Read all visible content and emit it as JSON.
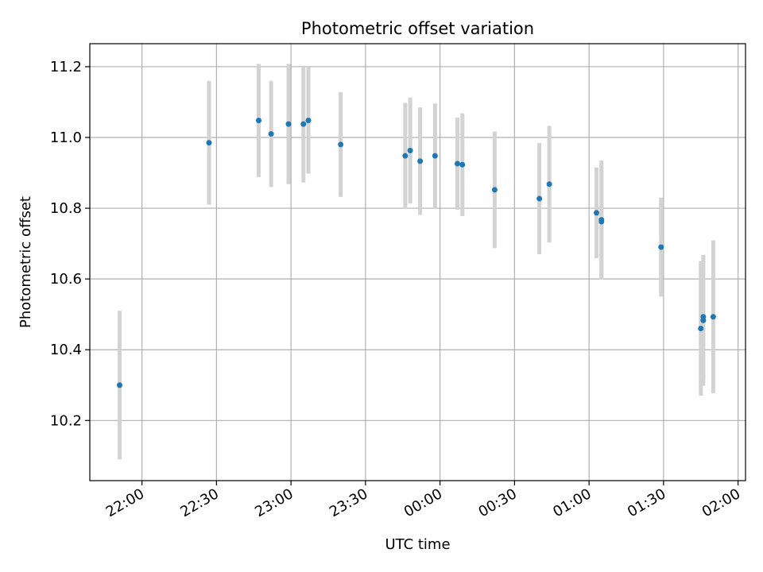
{
  "chart_data": {
    "type": "scatter",
    "title": "Photometric offset variation",
    "xlabel": "UTC time",
    "ylabel": "Photometric offset",
    "grid": true,
    "colors": {
      "point": "#1f77b4",
      "errorbar": "#d3d3d3",
      "grid": "#b0b0b0"
    },
    "xlim": [
      "21:39",
      "02:03"
    ],
    "ylim": [
      10.03,
      11.265
    ],
    "xticks": [
      "22:00",
      "22:30",
      "23:00",
      "23:30",
      "00:00",
      "00:30",
      "01:00",
      "01:30",
      "02:00"
    ],
    "yticks": [
      10.2,
      10.4,
      10.6,
      10.8,
      11.0,
      11.2
    ],
    "points": [
      {
        "t": "21:51",
        "y": 10.3,
        "err": 0.21
      },
      {
        "t": "22:27",
        "y": 10.985,
        "err": 0.175
      },
      {
        "t": "22:47",
        "y": 11.048,
        "err": 0.16
      },
      {
        "t": "22:52",
        "y": 11.01,
        "err": 0.15
      },
      {
        "t": "22:59",
        "y": 11.038,
        "err": 0.17
      },
      {
        "t": "23:05",
        "y": 11.038,
        "err": 0.165
      },
      {
        "t": "23:07",
        "y": 11.048,
        "err": 0.15
      },
      {
        "t": "23:20",
        "y": 10.98,
        "err": 0.148
      },
      {
        "t": "23:46",
        "y": 10.948,
        "err": 0.15
      },
      {
        "t": "23:48",
        "y": 10.963,
        "err": 0.15
      },
      {
        "t": "23:52",
        "y": 10.933,
        "err": 0.152
      },
      {
        "t": "23:58",
        "y": 10.948,
        "err": 0.148
      },
      {
        "t": "00:07",
        "y": 10.926,
        "err": 0.13
      },
      {
        "t": "00:09",
        "y": 10.923,
        "err": 0.145
      },
      {
        "t": "00:22",
        "y": 10.852,
        "err": 0.165
      },
      {
        "t": "00:40",
        "y": 10.827,
        "err": 0.157
      },
      {
        "t": "00:44",
        "y": 10.868,
        "err": 0.165
      },
      {
        "t": "01:03",
        "y": 10.787,
        "err": 0.128
      },
      {
        "t": "01:05",
        "y": 10.767,
        "err": 0.168
      },
      {
        "t": "01:05",
        "y": 10.762,
        "err": 0.163
      },
      {
        "t": "01:29",
        "y": 10.69,
        "err": 0.14
      },
      {
        "t": "01:45",
        "y": 10.46,
        "err": 0.19
      },
      {
        "t": "01:46",
        "y": 10.493,
        "err": 0.175
      },
      {
        "t": "01:46",
        "y": 10.483,
        "err": 0.185
      },
      {
        "t": "01:50",
        "y": 10.493,
        "err": 0.216
      }
    ]
  }
}
